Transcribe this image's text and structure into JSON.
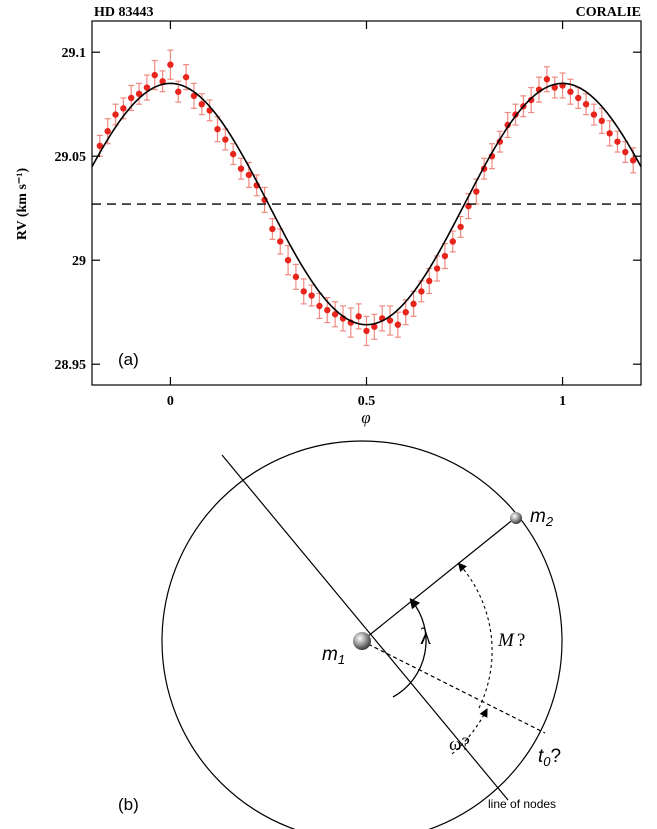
{
  "chart_data": {
    "type": "scatter",
    "title_left": "HD 83443",
    "title_right": "CORALIE",
    "panel_label": "(a)",
    "xlabel": "φ",
    "ylabel": "RV (km s⁻¹)",
    "xlim": [
      -0.2,
      1.2
    ],
    "ylim": [
      28.94,
      29.115
    ],
    "xticks": [
      0,
      0.5,
      1
    ],
    "xtick_labels": [
      "0",
      "0.5",
      "1"
    ],
    "yticks": [
      28.95,
      29,
      29.05,
      29.1
    ],
    "ytick_labels": [
      "28.95",
      "29",
      "29.05",
      "29.1"
    ],
    "model": {
      "gamma": 29.027,
      "amplitude": 0.058,
      "curve_color": "#000000"
    },
    "mean_line": 29.027,
    "point_color": "#e8251c",
    "errorbar_color": "#f08a80",
    "series": [
      {
        "x": [
          -0.18,
          -0.16,
          -0.14,
          -0.12,
          -0.1,
          -0.08,
          -0.06,
          -0.04,
          -0.02,
          0.0,
          0.02,
          0.04,
          0.06,
          0.08,
          0.1,
          0.12,
          0.14,
          0.16,
          0.18,
          0.2,
          0.22,
          0.24,
          0.26,
          0.28,
          0.3,
          0.32,
          0.34,
          0.36,
          0.38,
          0.4,
          0.42,
          0.44,
          0.46,
          0.48,
          0.5,
          0.52,
          0.54,
          0.56,
          0.58,
          0.6,
          0.62,
          0.64,
          0.66,
          0.68,
          0.7,
          0.72,
          0.74,
          0.76,
          0.78,
          0.8,
          0.82,
          0.84,
          0.86,
          0.88,
          0.9,
          0.92,
          0.94,
          0.96,
          0.98,
          1.0,
          1.02,
          1.04,
          1.06,
          1.08,
          1.1,
          1.12,
          1.14,
          1.16,
          1.18
        ],
        "y": [
          29.055,
          29.062,
          29.07,
          29.073,
          29.078,
          29.08,
          29.083,
          29.089,
          29.086,
          29.094,
          29.081,
          29.088,
          29.079,
          29.075,
          29.072,
          29.063,
          29.058,
          29.051,
          29.044,
          29.041,
          29.036,
          29.029,
          29.015,
          29.009,
          29.0,
          28.992,
          28.985,
          28.983,
          28.978,
          28.976,
          28.974,
          28.972,
          28.97,
          28.973,
          28.966,
          28.968,
          28.972,
          28.971,
          28.969,
          28.975,
          28.979,
          28.985,
          28.99,
          28.996,
          29.002,
          29.009,
          29.016,
          29.026,
          29.033,
          29.044,
          29.05,
          29.057,
          29.065,
          29.07,
          29.074,
          29.077,
          29.082,
          29.087,
          29.083,
          29.084,
          29.081,
          29.078,
          29.075,
          29.07,
          29.067,
          29.061,
          29.057,
          29.052,
          29.048
        ],
        "err": [
          0.005,
          0.006,
          0.005,
          0.005,
          0.006,
          0.005,
          0.006,
          0.007,
          0.005,
          0.007,
          0.005,
          0.006,
          0.006,
          0.005,
          0.005,
          0.006,
          0.005,
          0.005,
          0.005,
          0.006,
          0.005,
          0.006,
          0.005,
          0.006,
          0.007,
          0.006,
          0.006,
          0.005,
          0.006,
          0.006,
          0.006,
          0.006,
          0.007,
          0.006,
          0.007,
          0.006,
          0.006,
          0.007,
          0.006,
          0.006,
          0.006,
          0.005,
          0.006,
          0.006,
          0.006,
          0.005,
          0.005,
          0.006,
          0.006,
          0.005,
          0.006,
          0.005,
          0.006,
          0.005,
          0.005,
          0.006,
          0.006,
          0.006,
          0.005,
          0.006,
          0.006,
          0.005,
          0.005,
          0.005,
          0.006,
          0.006,
          0.005,
          0.005,
          0.006
        ]
      }
    ]
  },
  "diagram": {
    "panel_label": "(b)",
    "m1": "m",
    "m1_sub": "1",
    "m2": "m",
    "m2_sub": "2",
    "lambda": "λ",
    "M": "M",
    "M_q": "?",
    "omega": "ω?",
    "t0": "t",
    "t0_sub": "0",
    "t0_q": "?",
    "line_of_nodes": "line of nodes"
  }
}
